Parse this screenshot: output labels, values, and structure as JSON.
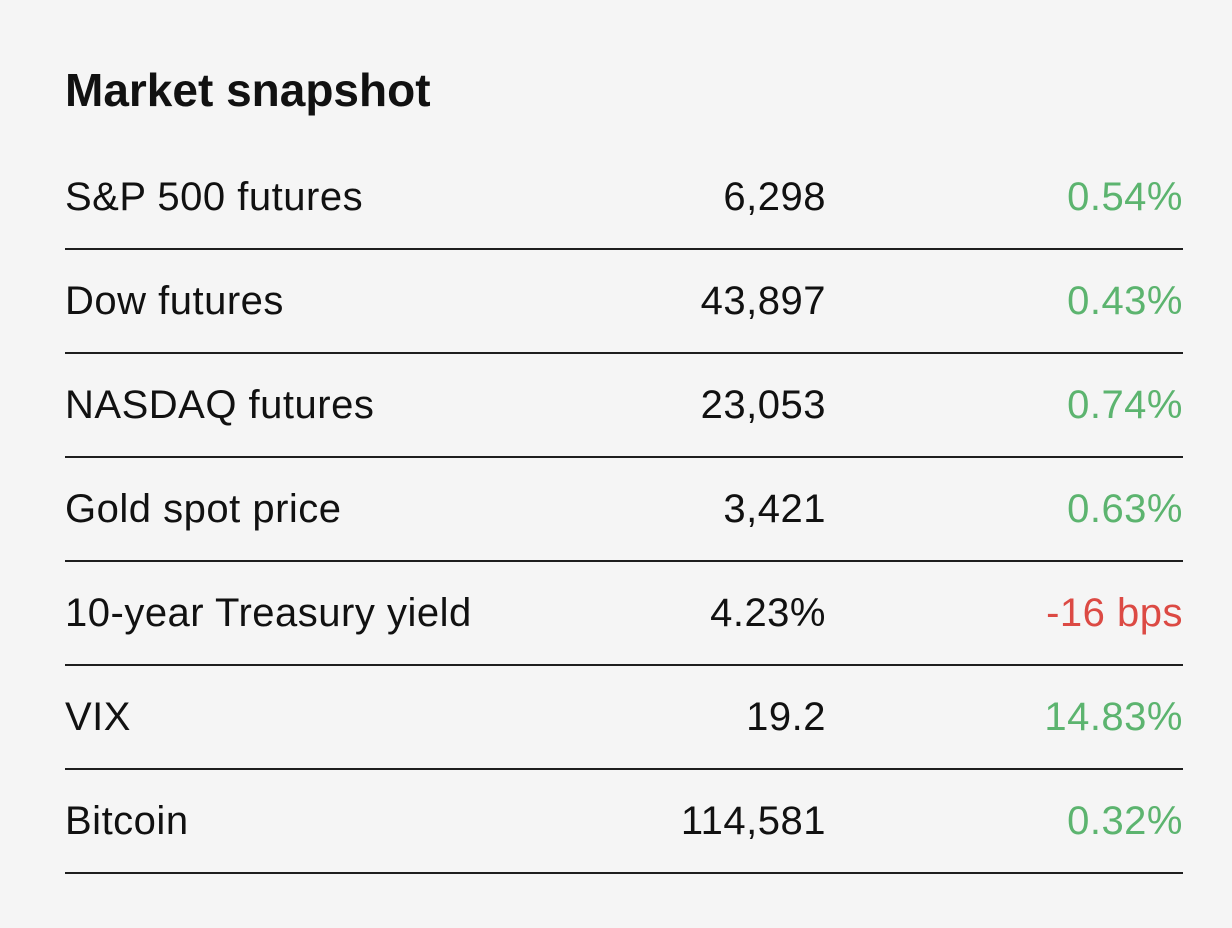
{
  "header": {
    "title": "Market snapshot"
  },
  "table": {
    "rows": [
      {
        "name": "S&P 500 futures",
        "value": "6,298",
        "change": "0.54%",
        "change_color": "#5cb46f"
      },
      {
        "name": "Dow futures",
        "value": "43,897",
        "change": "0.43%",
        "change_color": "#5cb46f"
      },
      {
        "name": "NASDAQ futures",
        "value": "23,053",
        "change": "0.74%",
        "change_color": "#5cb46f"
      },
      {
        "name": "Gold spot price",
        "value": "3,421",
        "change": "0.63%",
        "change_color": "#5cb46f"
      },
      {
        "name": "10-year Treasury yield",
        "value": "4.23%",
        "change": "-16 bps",
        "change_color": "#dc4a44"
      },
      {
        "name": "VIX",
        "value": "19.2",
        "change": "14.83%",
        "change_color": "#5cb46f"
      },
      {
        "name": "Bitcoin",
        "value": "114,581",
        "change": "0.32%",
        "change_color": "#5cb46f"
      }
    ]
  }
}
